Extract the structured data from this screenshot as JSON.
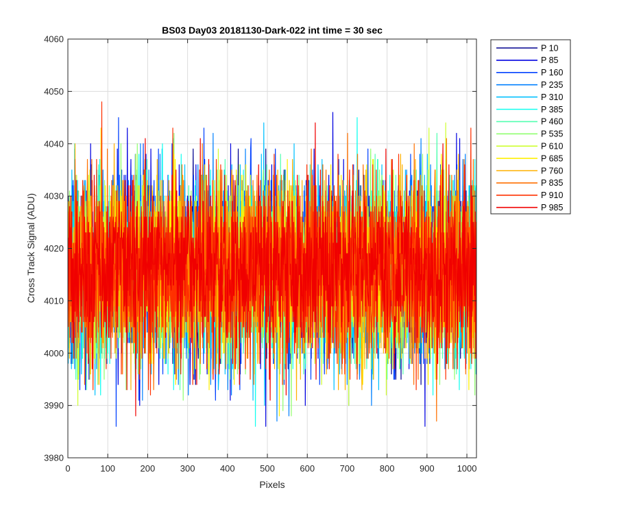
{
  "chart_data": {
    "type": "line",
    "title": "BS03 Day03 20181130-Dark-022 int time = 30 sec",
    "xlabel": "Pixels",
    "ylabel": "Cross Track Signal (ADU)",
    "xlim": [
      0,
      1024
    ],
    "ylim": [
      3980,
      4060
    ],
    "xticks": [
      0,
      100,
      200,
      300,
      400,
      500,
      600,
      700,
      800,
      900,
      1000
    ],
    "yticks": [
      3980,
      3990,
      4000,
      4010,
      4020,
      4030,
      4040,
      4050,
      4060
    ],
    "grid": true,
    "legend_position": "outside-top-right",
    "x_range": [
      1,
      1024
    ],
    "noise_model": {
      "mean": 4016,
      "std": 8.5,
      "min_observed": 3986,
      "max_observed": 4055
    },
    "series": [
      {
        "name": "P 10",
        "color": "#00008f"
      },
      {
        "name": "P 85",
        "color": "#0000e0"
      },
      {
        "name": "P 160",
        "color": "#0040ff"
      },
      {
        "name": "P 235",
        "color": "#0080ff"
      },
      {
        "name": "P 310",
        "color": "#00c0ff"
      },
      {
        "name": "P 385",
        "color": "#10ffef"
      },
      {
        "name": "P 460",
        "color": "#50ffaf"
      },
      {
        "name": "P 535",
        "color": "#90ff6f"
      },
      {
        "name": "P 610",
        "color": "#cfff30"
      },
      {
        "name": "P 685",
        "color": "#ffef00"
      },
      {
        "name": "P 760",
        "color": "#ffb000"
      },
      {
        "name": "P 835",
        "color": "#ff7000"
      },
      {
        "name": "P 910",
        "color": "#ff3000"
      },
      {
        "name": "P 985",
        "color": "#f00000"
      }
    ]
  }
}
